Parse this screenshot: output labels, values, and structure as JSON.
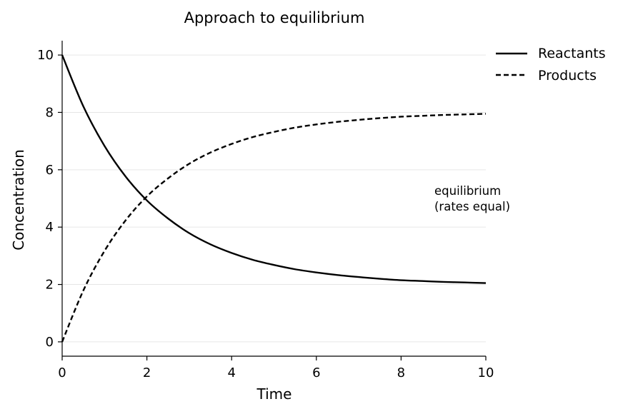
{
  "chart_data": {
    "type": "line",
    "title": "Approach to equilibrium",
    "xlabel": "Time",
    "ylabel": "Concentration",
    "xlim": [
      0,
      10
    ],
    "ylim": [
      -0.5,
      10.5
    ],
    "xticks": [
      0,
      2,
      4,
      6,
      8,
      10
    ],
    "yticks": [
      0,
      2,
      4,
      6,
      8,
      10
    ],
    "grid": "horizontal",
    "legend_position": "top-right outside",
    "annotation": [
      "equilibrium",
      "(rates equal)"
    ],
    "series": [
      {
        "name": "Reactants",
        "style": "solid",
        "color": "#000000",
        "x": [
          0,
          0.5,
          1,
          1.5,
          2,
          2.5,
          3,
          3.5,
          4,
          4.5,
          5,
          5.5,
          6,
          6.5,
          7,
          7.5,
          8,
          8.5,
          9,
          9.5,
          10
        ],
        "y": [
          10.0,
          8.21,
          6.83,
          5.76,
          4.93,
          4.3,
          3.79,
          3.4,
          3.1,
          2.86,
          2.68,
          2.53,
          2.42,
          2.33,
          2.26,
          2.2,
          2.15,
          2.12,
          2.09,
          2.07,
          2.05
        ]
      },
      {
        "name": "Products",
        "style": "dashed",
        "color": "#000000",
        "x": [
          0,
          0.5,
          1,
          1.5,
          2,
          2.5,
          3,
          3.5,
          4,
          4.5,
          5,
          5.5,
          6,
          6.5,
          7,
          7.5,
          8,
          8.5,
          9,
          9.5,
          10
        ],
        "y": [
          0.0,
          1.79,
          3.17,
          4.24,
          5.07,
          5.7,
          6.21,
          6.6,
          6.9,
          7.14,
          7.32,
          7.47,
          7.58,
          7.67,
          7.74,
          7.8,
          7.85,
          7.88,
          7.91,
          7.93,
          7.95
        ]
      }
    ]
  }
}
